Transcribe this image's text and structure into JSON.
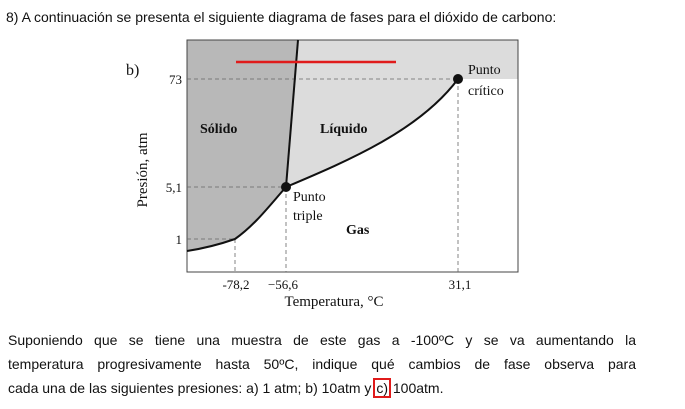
{
  "question": {
    "title": "8) A continuación se presenta el siguiente diagrama de fases para el dióxido de carbono:"
  },
  "diagram": {
    "part_label": "b)",
    "regions": {
      "solid": "Sólido",
      "liquid": "Líquido",
      "gas": "Gas"
    },
    "points": {
      "triple_line1": "Punto",
      "triple_line2": "triple",
      "critical_line1": "Punto",
      "critical_line2": "crítico"
    },
    "y_axis_label": "Presión, atm",
    "x_axis_label": "Temperatura, °C",
    "y_ticks": [
      "73",
      "5,1",
      "1"
    ],
    "x_ticks": [
      "-78,2",
      "−56,6",
      "31,1"
    ],
    "colors": {
      "solid_region": "#b8b8b8",
      "liquid_region": "#dcdcdc",
      "gas_region": "#ffffff",
      "annotation_red": "#e01b1b"
    }
  },
  "body": {
    "line1": "Suponiendo que se tiene una muestra de este gas a -100ºC y se va aumentando la",
    "line2": "temperatura progresivamente hasta 50ºC, indique qué cambios de fase observa para",
    "line3_pre": "cada una de las siguientes presiones: a) 1 atm; b) 10atm y ",
    "line3_boxed": "c)",
    "line3_post": " 100atm."
  }
}
